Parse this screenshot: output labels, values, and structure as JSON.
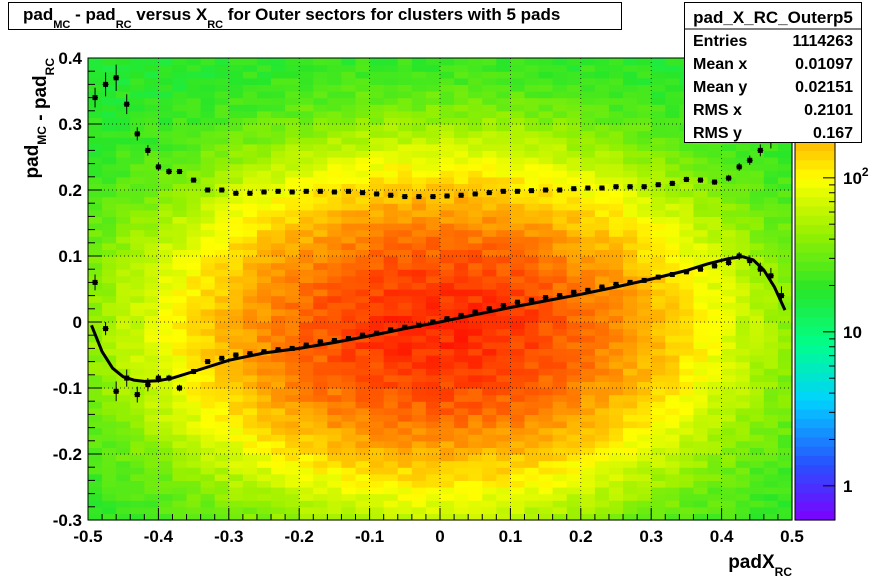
{
  "title": {
    "parts": [
      {
        "text": "pad",
        "sub": "MC"
      },
      {
        "text": " - pad",
        "sub": "RC"
      },
      {
        "text": " versus X",
        "sub": "RC"
      },
      {
        "text": " for Outer sectors for clusters with 5 pads",
        "sub": ""
      }
    ]
  },
  "stats": {
    "name": "pad_X_RC_Outerp5",
    "rows": [
      {
        "label": "Entries",
        "value": "1114263"
      },
      {
        "label": "Mean x",
        "value": "0.01097"
      },
      {
        "label": "Mean y",
        "value": "0.02151"
      },
      {
        "label": "RMS x",
        "value": "0.2101"
      },
      {
        "label": "RMS y",
        "value": "0.167"
      }
    ]
  },
  "chart_data": {
    "type": "heatmap",
    "title": "pad_MC - pad_RC versus X_RC for Outer sectors for clusters with 5 pads",
    "xlabel": {
      "main": "padX",
      "sub": "RC"
    },
    "ylabel": {
      "parts": [
        {
          "text": "pad",
          "sub": "MC"
        },
        {
          "text": " - pad",
          "sub": "RC"
        }
      ]
    },
    "xlim": [
      -0.5,
      0.5
    ],
    "ylim": [
      -0.3,
      0.4
    ],
    "x_ticks": [
      "-0.5",
      "-0.4",
      "-0.3",
      "-0.2",
      "-0.1",
      "0",
      "0.1",
      "0.2",
      "0.3",
      "0.4",
      "0.5"
    ],
    "y_ticks": [
      "-0.3",
      "-0.2",
      "-0.1",
      "0",
      "0.1",
      "0.2",
      "0.3",
      "0.4"
    ],
    "x_tick_values": [
      -0.5,
      -0.4,
      -0.3,
      -0.2,
      -0.1,
      0,
      0.1,
      0.2,
      0.3,
      0.4,
      0.5
    ],
    "y_tick_values": [
      -0.3,
      -0.2,
      -0.1,
      0,
      0.1,
      0.2,
      0.3,
      0.4
    ],
    "grid": true,
    "z_scale": "log",
    "z_range": [
      0.6,
      600
    ],
    "z_ticks": [
      {
        "value": 1,
        "label": "1"
      },
      {
        "value": 10,
        "label": "10"
      },
      {
        "value": 100,
        "label": "10^2"
      }
    ],
    "density_model": {
      "peak": 500,
      "center_x": 0.0,
      "center_y": -0.01,
      "sigma_x": 0.2,
      "sigma_y": 0.13,
      "floor": 18,
      "bins_x": 50,
      "bins_y": 70
    },
    "mean_profile": {
      "x": [
        -0.49,
        -0.475,
        -0.46,
        -0.445,
        -0.43,
        -0.415,
        -0.4,
        -0.385,
        -0.37,
        -0.35,
        -0.33,
        -0.31,
        -0.29,
        -0.27,
        -0.25,
        -0.23,
        -0.21,
        -0.19,
        -0.17,
        -0.15,
        -0.13,
        -0.11,
        -0.09,
        -0.07,
        -0.05,
        -0.03,
        -0.01,
        0.01,
        0.03,
        0.05,
        0.07,
        0.09,
        0.11,
        0.13,
        0.15,
        0.17,
        0.19,
        0.21,
        0.23,
        0.25,
        0.27,
        0.29,
        0.31,
        0.33,
        0.35,
        0.37,
        0.39,
        0.41,
        0.425,
        0.44,
        0.455,
        0.47,
        0.485
      ],
      "y": [
        0.06,
        -0.01,
        -0.105,
        -0.085,
        -0.11,
        -0.095,
        -0.085,
        -0.085,
        -0.1,
        -0.075,
        -0.06,
        -0.055,
        -0.05,
        -0.048,
        -0.045,
        -0.042,
        -0.04,
        -0.035,
        -0.03,
        -0.028,
        -0.025,
        -0.02,
        -0.017,
        -0.012,
        -0.008,
        -0.005,
        0.0,
        0.005,
        0.01,
        0.015,
        0.02,
        0.025,
        0.03,
        0.033,
        0.037,
        0.04,
        0.045,
        0.048,
        0.053,
        0.057,
        0.06,
        0.063,
        0.068,
        0.072,
        0.076,
        0.08,
        0.085,
        0.09,
        0.1,
        0.093,
        0.08,
        0.07,
        0.04
      ],
      "err": [
        0.012,
        0.01,
        0.015,
        0.013,
        0.012,
        0.01,
        0.006,
        0.005,
        0.005,
        0.004,
        0.003,
        0.003,
        0.003,
        0.002,
        0.002,
        0.002,
        0.002,
        0.002,
        0.002,
        0.002,
        0.002,
        0.002,
        0.002,
        0.002,
        0.002,
        0.002,
        0.002,
        0.002,
        0.002,
        0.002,
        0.002,
        0.002,
        0.002,
        0.002,
        0.002,
        0.002,
        0.002,
        0.002,
        0.002,
        0.002,
        0.002,
        0.002,
        0.003,
        0.003,
        0.003,
        0.003,
        0.004,
        0.005,
        0.006,
        0.008,
        0.01,
        0.012,
        0.014
      ]
    },
    "rms_profile": {
      "x": [
        -0.49,
        -0.475,
        -0.46,
        -0.445,
        -0.43,
        -0.415,
        -0.4,
        -0.385,
        -0.37,
        -0.35,
        -0.33,
        -0.31,
        -0.29,
        -0.27,
        -0.25,
        -0.23,
        -0.21,
        -0.19,
        -0.17,
        -0.15,
        -0.13,
        -0.11,
        -0.09,
        -0.07,
        -0.05,
        -0.03,
        -0.01,
        0.01,
        0.03,
        0.05,
        0.07,
        0.09,
        0.11,
        0.13,
        0.15,
        0.17,
        0.19,
        0.21,
        0.23,
        0.25,
        0.27,
        0.29,
        0.31,
        0.33,
        0.35,
        0.37,
        0.39,
        0.41,
        0.425,
        0.44,
        0.455,
        0.47
      ],
      "y": [
        0.34,
        0.36,
        0.37,
        0.33,
        0.285,
        0.26,
        0.235,
        0.228,
        0.228,
        0.215,
        0.2,
        0.2,
        0.195,
        0.195,
        0.197,
        0.198,
        0.197,
        0.198,
        0.198,
        0.197,
        0.198,
        0.196,
        0.194,
        0.192,
        0.19,
        0.19,
        0.19,
        0.191,
        0.192,
        0.194,
        0.196,
        0.198,
        0.198,
        0.199,
        0.2,
        0.2,
        0.202,
        0.203,
        0.203,
        0.205,
        0.205,
        0.205,
        0.208,
        0.21,
        0.216,
        0.215,
        0.212,
        0.218,
        0.235,
        0.245,
        0.26,
        0.275
      ],
      "err": [
        0.015,
        0.018,
        0.02,
        0.015,
        0.01,
        0.008,
        0.006,
        0.005,
        0.004,
        0.003,
        0.003,
        0.003,
        0.003,
        0.003,
        0.003,
        0.003,
        0.003,
        0.003,
        0.003,
        0.003,
        0.003,
        0.003,
        0.003,
        0.003,
        0.003,
        0.003,
        0.003,
        0.003,
        0.003,
        0.003,
        0.003,
        0.003,
        0.003,
        0.003,
        0.003,
        0.003,
        0.003,
        0.003,
        0.003,
        0.003,
        0.003,
        0.003,
        0.003,
        0.004,
        0.004,
        0.004,
        0.004,
        0.005,
        0.006,
        0.007,
        0.009,
        0.012
      ]
    },
    "fit_curve": {
      "x": [
        -0.495,
        -0.48,
        -0.465,
        -0.45,
        -0.435,
        -0.42,
        -0.4,
        -0.38,
        -0.35,
        -0.3,
        -0.25,
        -0.2,
        -0.15,
        -0.1,
        -0.05,
        0.0,
        0.05,
        0.1,
        0.15,
        0.2,
        0.25,
        0.3,
        0.35,
        0.38,
        0.41,
        0.43,
        0.445,
        0.46,
        0.475,
        0.49
      ],
      "y": [
        -0.005,
        -0.045,
        -0.07,
        -0.083,
        -0.088,
        -0.09,
        -0.089,
        -0.085,
        -0.075,
        -0.058,
        -0.047,
        -0.04,
        -0.031,
        -0.021,
        -0.01,
        0.0,
        0.011,
        0.022,
        0.032,
        0.042,
        0.053,
        0.065,
        0.078,
        0.088,
        0.096,
        0.099,
        0.094,
        0.079,
        0.053,
        0.018
      ]
    }
  }
}
